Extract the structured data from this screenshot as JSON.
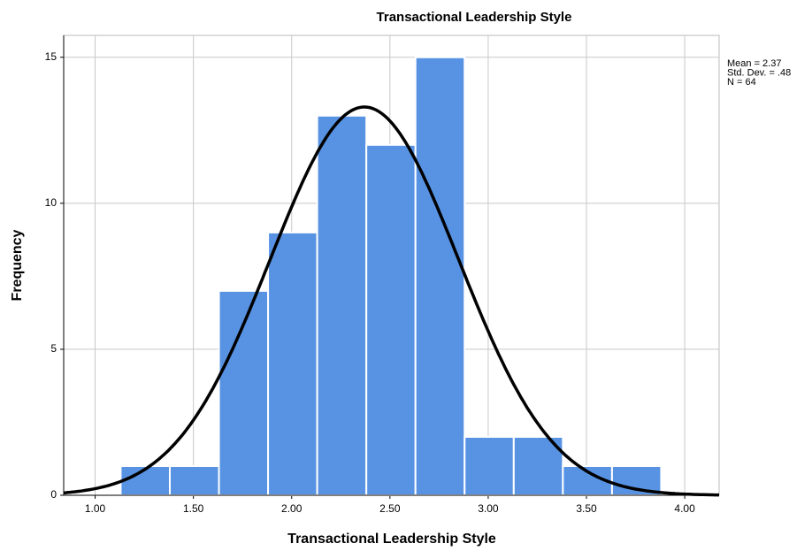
{
  "chart_data": {
    "type": "histogram",
    "title": "Transactional Leadership Style",
    "x_label": "Transactional Leadership Style",
    "y_label": "Frequency",
    "bins": [
      1.13,
      1.38,
      1.63,
      1.88,
      2.13,
      2.38,
      2.63,
      2.88,
      3.13,
      3.38,
      3.63,
      3.88
    ],
    "values": [
      1,
      1,
      7,
      9,
      13,
      12,
      15,
      2,
      2,
      1,
      1
    ],
    "color": "#5893e3",
    "xlim": [
      0.84,
      4.175
    ],
    "ylim": [
      0,
      15.75
    ],
    "xticks": [
      {
        "value": 1,
        "label": "1.00"
      },
      {
        "value": 1.5,
        "label": "1.50"
      },
      {
        "value": 2,
        "label": "2.00"
      },
      {
        "value": 2.5,
        "label": "2.50"
      },
      {
        "value": 3,
        "label": "3.00"
      },
      {
        "value": 3.5,
        "label": "3.50"
      },
      {
        "value": 4,
        "label": "4.00"
      }
    ],
    "yticks": [
      0,
      5,
      10,
      15
    ],
    "grid": true,
    "annotations": [
      "Mean = 2.37",
      "Std. Dev. = .48",
      "N = 64"
    ],
    "normal_curve": {
      "mean": 2.37,
      "sd": 0.48,
      "n": 64,
      "color": "#000000"
    }
  }
}
